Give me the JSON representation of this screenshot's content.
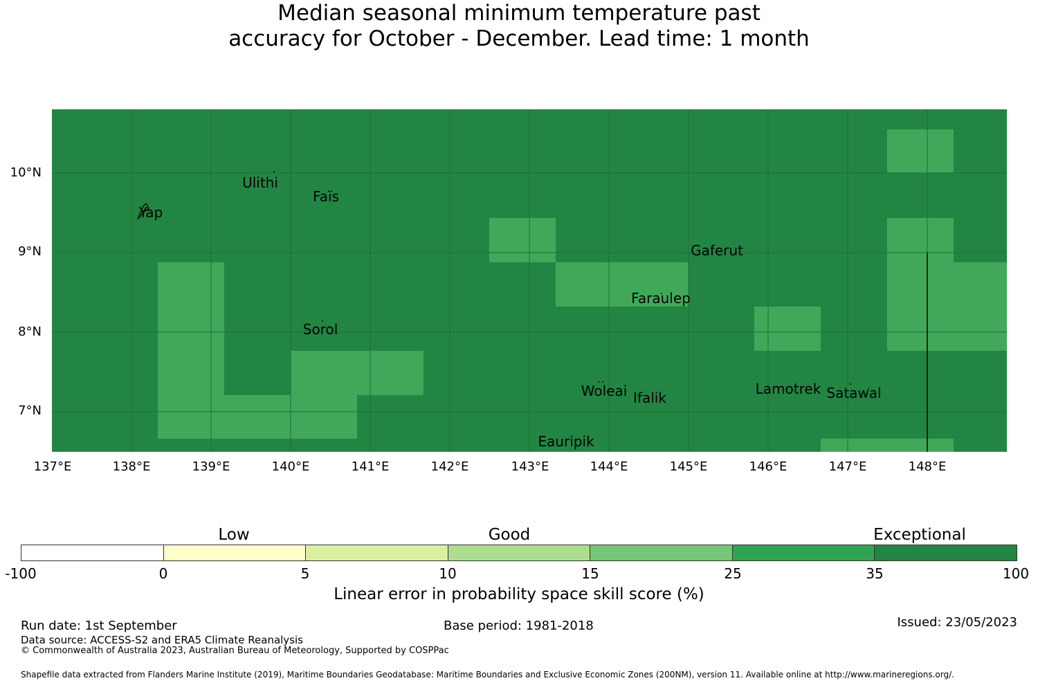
{
  "title": {
    "line1": "Median seasonal minimum temperature past",
    "line2": "accuracy for October - December. Lead time: 1 month"
  },
  "map": {
    "background_color": "#238543",
    "cell_color": "#41a85a",
    "grid_color": "#1c6e37",
    "lat_labels": [
      "10°N",
      "9°N",
      "8°N",
      "7°N"
    ],
    "lon_labels": [
      "137°E",
      "138°E",
      "139°E",
      "140°E",
      "141°E",
      "142°E",
      "143°E",
      "144°E",
      "145°E",
      "146°E",
      "147°E",
      "148°E"
    ],
    "places": [
      {
        "name": "Ulithi"
      },
      {
        "name": "Faïs"
      },
      {
        "name": "Yap"
      },
      {
        "name": "Gaferut"
      },
      {
        "name": "Faraulep"
      },
      {
        "name": "Sorol"
      },
      {
        "name": "Woleai"
      },
      {
        "name": "Ifalik"
      },
      {
        "name": "Lamotrek"
      },
      {
        "name": "Satawal"
      },
      {
        "name": "Eauripik"
      }
    ]
  },
  "legend": {
    "categories": [
      "Low",
      "Good",
      "Exceptional"
    ],
    "ticks": [
      "-100",
      "0",
      "5",
      "10",
      "15",
      "25",
      "35",
      "100"
    ],
    "colors": [
      "#ffffff",
      "#ffffcc",
      "#d9f0a3",
      "#addd8e",
      "#78c679",
      "#31a354",
      "#238443"
    ],
    "label": "Linear error in probability space skill score (%)"
  },
  "footer": {
    "run_date": "Run date: 1st September",
    "base_period": "Base period: 1981-2018",
    "issued": "Issued: 23/05/2023",
    "data_source": "Data source: ACCESS-S2 and ERA5 Climate Reanalysis",
    "copyright": "© Commonwealth of Australia 2023, Australian Bureau of Meteorology, Supported by COSPPac",
    "shapefile": "Shapefile data extracted from Flanders Marine Institute (2019), Maritime Boundaries Geodatabase: Maritime Boundaries and Exclusive Economic Zones (200NM), version 11. Available online at http://www.marineregions.org/."
  }
}
